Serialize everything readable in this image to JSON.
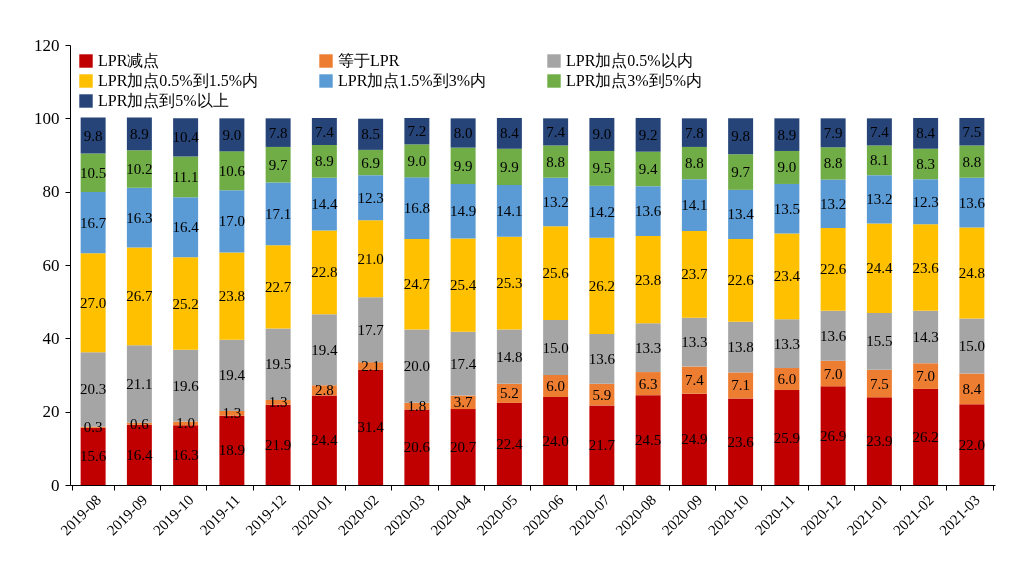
{
  "chart_data": {
    "type": "bar",
    "stacked": true,
    "legend": "top",
    "grid": false,
    "categories": [
      "2019-08",
      "2019-09",
      "2019-10",
      "2019-11",
      "2019-12",
      "2020-01",
      "2020-02",
      "2020-03",
      "2020-04",
      "2020-05",
      "2020-06",
      "2020-07",
      "2020-08",
      "2020-09",
      "2020-10",
      "2020-11",
      "2020-12",
      "2021-01",
      "2021-02",
      "2021-03"
    ],
    "ylim": [
      0,
      120
    ],
    "yticks": [
      0,
      20,
      40,
      60,
      80,
      100,
      120
    ],
    "series": [
      {
        "name": "LPR减点",
        "color": "#c00000",
        "values": [
          15.6,
          16.4,
          16.3,
          18.9,
          21.9,
          24.4,
          31.4,
          20.6,
          20.7,
          22.4,
          24.0,
          21.7,
          24.5,
          24.9,
          23.6,
          25.9,
          26.9,
          23.9,
          26.2,
          22.0
        ],
        "value_labels": [
          "15.6",
          "16.4",
          "16.3",
          "18.9",
          "21.9",
          "24.4",
          "31.4",
          "20.6",
          "20.7",
          "22.4",
          "24.0",
          "21.7",
          "24.5",
          "24.9",
          "23.6",
          "25.9",
          "26.9",
          "23.9",
          "26.2",
          "22.0"
        ]
      },
      {
        "name": "等于LPR",
        "color": "#ed7d31",
        "values": [
          0.3,
          0.6,
          1.0,
          1.3,
          1.3,
          2.8,
          2.1,
          1.8,
          3.7,
          5.2,
          6.0,
          5.9,
          6.3,
          7.4,
          7.1,
          6.0,
          7.0,
          7.5,
          7.0,
          8.4
        ],
        "value_labels": [
          "0.3",
          "0.6",
          "1.0",
          "1.3",
          "1.3",
          "2.8",
          "2.1",
          "1.8",
          "3.7",
          "5.2",
          "6.0",
          "5.9",
          "6.3",
          "7.4",
          "7.1",
          "6.0",
          "7.0",
          "7.5",
          "7.0",
          "8.4"
        ]
      },
      {
        "name": "LPR加点0.5%以内",
        "color": "#a5a5a5",
        "values": [
          20.3,
          21.1,
          19.6,
          19.4,
          19.5,
          19.4,
          17.7,
          20.0,
          17.4,
          14.8,
          15.0,
          13.6,
          13.3,
          13.3,
          13.8,
          13.3,
          13.6,
          15.5,
          14.3,
          15.0
        ],
        "value_labels": [
          "20.3",
          "21.1",
          "19.6",
          "19.4",
          "19.5",
          "19.4",
          "17.7",
          "20.0",
          "17.4",
          "14.8",
          "15.0",
          "13.6",
          "13.3",
          "13.3",
          "13.8",
          "13.3",
          "13.6",
          "15.5",
          "14.3",
          "15.0"
        ]
      },
      {
        "name": "LPR加点0.5%到1.5%内",
        "color": "#ffc000",
        "values": [
          27.0,
          26.7,
          25.2,
          23.8,
          22.7,
          22.8,
          21.0,
          24.7,
          25.4,
          25.3,
          25.6,
          26.2,
          23.8,
          23.7,
          22.6,
          23.4,
          22.6,
          24.4,
          23.6,
          24.8
        ],
        "value_labels": [
          "27.0",
          "26.7",
          "25.2",
          "23.8",
          "22.7",
          "22.8",
          "21.0",
          "24.7",
          "25.4",
          "25.3",
          "25.6",
          "26.2",
          "23.8",
          "23.7",
          "22.6",
          "23.4",
          "22.6",
          "24.4",
          "23.6",
          "24.8"
        ]
      },
      {
        "name": "LPR加点1.5%到3%内",
        "color": "#5b9bd5",
        "values": [
          16.7,
          16.3,
          16.4,
          17.0,
          17.1,
          14.4,
          12.3,
          16.8,
          14.9,
          14.1,
          13.2,
          14.2,
          13.6,
          14.1,
          13.4,
          13.5,
          13.2,
          13.2,
          12.3,
          13.6
        ],
        "value_labels": [
          "16.7",
          "16.3",
          "16.4",
          "17.0",
          "17.1",
          "14.4",
          "12.3",
          "16.8",
          "14.9",
          "14.1",
          "13.2",
          "14.2",
          "13.6",
          "14.1",
          "13.4",
          "13.5",
          "13.2",
          "13.2",
          "12.3",
          "13.6"
        ]
      },
      {
        "name": "LPR加点3%到5%内",
        "color": "#70ad47",
        "values": [
          10.5,
          10.2,
          11.1,
          10.6,
          9.7,
          8.9,
          6.9,
          9.0,
          9.9,
          9.9,
          8.8,
          9.5,
          9.4,
          8.8,
          9.7,
          9.0,
          8.8,
          8.1,
          8.3,
          8.8
        ],
        "value_labels": [
          "10.5",
          "10.2",
          "11.1",
          "10.6",
          "9.7",
          "8.9",
          "6.9",
          "9.0",
          "9.9",
          "9.9",
          "8.8",
          "9.5",
          "9.4",
          "8.8",
          "9.7",
          "9.0",
          "8.8",
          "8.1",
          "8.3",
          "8.8"
        ]
      },
      {
        "name": "LPR加点到5%以上",
        "color": "#264478",
        "values": [
          9.8,
          8.9,
          10.4,
          9.0,
          7.8,
          7.4,
          8.5,
          7.2,
          8.0,
          8.4,
          7.4,
          9.0,
          9.2,
          7.8,
          9.8,
          8.9,
          7.9,
          7.4,
          8.4,
          7.5
        ],
        "value_labels": [
          "9.8",
          "8.9",
          "10.4",
          "9.0",
          "7.8",
          "7.4",
          "8.5",
          "7.2",
          "8.0",
          "8.4",
          "7.4",
          "9.0",
          "9.2",
          "7.8",
          "9.8",
          "8.9",
          "7.9",
          "7.4",
          "8.4",
          "7.5"
        ]
      }
    ]
  }
}
